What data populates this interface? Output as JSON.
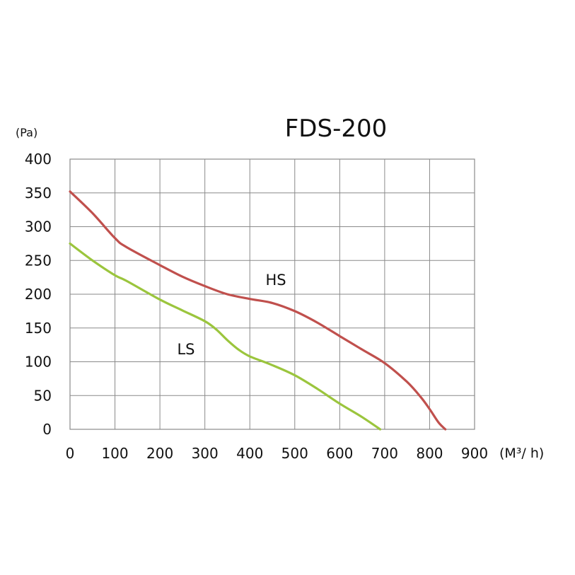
{
  "chart_data": {
    "type": "line",
    "title": "FDS-200",
    "ylabel": "(Pa)",
    "xlabel": "(M³/ h)",
    "xlim": [
      0,
      900
    ],
    "ylim": [
      0,
      400
    ],
    "x_ticks": [
      "0",
      "100",
      "200",
      "300",
      "400",
      "500",
      "600",
      "700",
      "800",
      "900"
    ],
    "y_ticks": [
      "0",
      "50",
      "100",
      "150",
      "200",
      "250",
      "300",
      "350",
      "400"
    ],
    "grid": true,
    "series": [
      {
        "name": "HS",
        "color": "#c0504d",
        "points": [
          [
            0,
            352
          ],
          [
            50,
            320
          ],
          [
            100,
            283
          ],
          [
            125,
            270
          ],
          [
            200,
            243
          ],
          [
            250,
            226
          ],
          [
            300,
            212
          ],
          [
            350,
            200
          ],
          [
            400,
            193
          ],
          [
            450,
            187
          ],
          [
            500,
            175
          ],
          [
            550,
            158
          ],
          [
            600,
            138
          ],
          [
            650,
            118
          ],
          [
            700,
            98
          ],
          [
            750,
            70
          ],
          [
            780,
            48
          ],
          [
            800,
            30
          ],
          [
            820,
            10
          ],
          [
            835,
            0
          ]
        ]
      },
      {
        "name": "LS",
        "color": "#9bc53d",
        "points": [
          [
            0,
            275
          ],
          [
            50,
            250
          ],
          [
            100,
            228
          ],
          [
            125,
            220
          ],
          [
            200,
            192
          ],
          [
            250,
            176
          ],
          [
            300,
            160
          ],
          [
            325,
            148
          ],
          [
            350,
            132
          ],
          [
            375,
            118
          ],
          [
            400,
            108
          ],
          [
            450,
            95
          ],
          [
            500,
            80
          ],
          [
            550,
            60
          ],
          [
            600,
            38
          ],
          [
            650,
            18
          ],
          [
            690,
            0
          ]
        ]
      }
    ]
  }
}
